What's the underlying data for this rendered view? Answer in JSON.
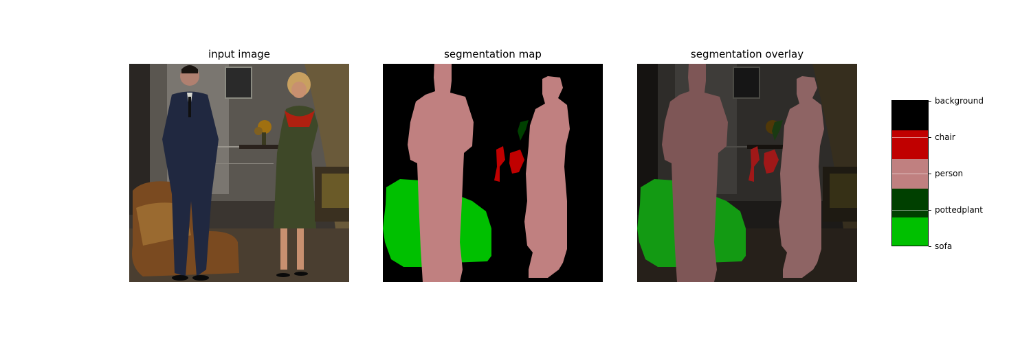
{
  "panels": [
    {
      "title": "input image"
    },
    {
      "title": "segmentation map"
    },
    {
      "title": "segmentation overlay"
    }
  ],
  "legend": {
    "items": [
      {
        "label": "background",
        "color": "#000000"
      },
      {
        "label": "chair",
        "color": "#c00000"
      },
      {
        "label": "person",
        "color": "#c08080"
      },
      {
        "label": "pottedplant",
        "color": "#004000"
      },
      {
        "label": "sofa",
        "color": "#00c000"
      }
    ]
  }
}
